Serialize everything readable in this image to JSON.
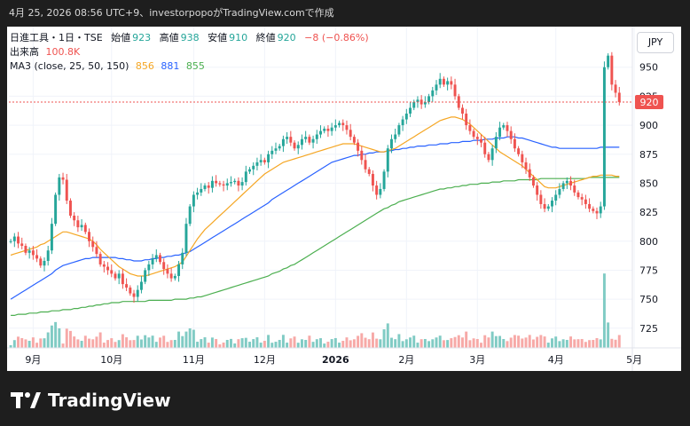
{
  "topbar": {
    "text": "4月 25, 2026 08:56 UTC+9、investorpopoがTradingView.comで作成"
  },
  "legend": {
    "symbol": "日進工具・1日・TSE",
    "o_label": "始値",
    "o": "923",
    "h_label": "高値",
    "h": "938",
    "l_label": "安値",
    "l": "910",
    "c_label": "終値",
    "c": "920",
    "change": "−8 (−0.86%)",
    "volume_label": "出来高",
    "volume": "100.8K",
    "ma_label": "MA3 (close, 25, 50, 150)",
    "ma1": "856",
    "ma2": "881",
    "ma3": "855"
  },
  "currency": "JPY",
  "price_tag": "920",
  "footer": {
    "brand": "TradingView"
  },
  "colors": {
    "up": "#26a69a",
    "down": "#ef5350",
    "ma25": "#f5a623",
    "ma50": "#2962ff",
    "ma150": "#4caf50",
    "vol_up": "#80cbc4",
    "vol_down": "#f7a9a7"
  },
  "chart_data": {
    "type": "candlestick",
    "title": "日進工具・1日・TSE",
    "ylim": [
      708,
      985
    ],
    "yticks": [
      725,
      750,
      775,
      800,
      825,
      850,
      875,
      900,
      925,
      950
    ],
    "ytick_labels": [
      "725",
      "750",
      "775",
      "800",
      "825",
      "850",
      "875",
      "900",
      "925",
      "950"
    ],
    "xticks": [
      {
        "label": "9月",
        "i": 6
      },
      {
        "label": "10月",
        "i": 27
      },
      {
        "label": "11月",
        "i": 49
      },
      {
        "label": "12月",
        "i": 68
      },
      {
        "label": "2026",
        "i": 87
      },
      {
        "label": "2月",
        "i": 106
      },
      {
        "label": "3月",
        "i": 125
      },
      {
        "label": "4月",
        "i": 146
      },
      {
        "label": "5月",
        "i": 167
      }
    ],
    "last_price": 920,
    "bars": 164,
    "closes": [
      800,
      804,
      798,
      796,
      790,
      792,
      788,
      785,
      779,
      783,
      792,
      815,
      840,
      855,
      853,
      835,
      822,
      818,
      812,
      814,
      808,
      800,
      795,
      789,
      780,
      778,
      775,
      772,
      768,
      772,
      763,
      760,
      755,
      752,
      758,
      765,
      775,
      780,
      785,
      788,
      782,
      776,
      772,
      768,
      770,
      780,
      790,
      815,
      830,
      840,
      842,
      845,
      848,
      846,
      852,
      850,
      849,
      848,
      850,
      851,
      852,
      848,
      851,
      860,
      862,
      865,
      868,
      870,
      868,
      875,
      878,
      880,
      882,
      888,
      890,
      885,
      880,
      883,
      888,
      890,
      885,
      888,
      892,
      895,
      897,
      895,
      898,
      900,
      902,
      900,
      896,
      890,
      885,
      878,
      870,
      862,
      858,
      848,
      840,
      845,
      860,
      880,
      888,
      892,
      900,
      905,
      910,
      915,
      920,
      922,
      918,
      920,
      925,
      930,
      935,
      940,
      935,
      938,
      935,
      925,
      915,
      910,
      900,
      895,
      890,
      888,
      885,
      875,
      870,
      880,
      890,
      898,
      900,
      895,
      888,
      880,
      875,
      868,
      862,
      855,
      848,
      840,
      832,
      828,
      830,
      835,
      840,
      845,
      850,
      852,
      848,
      842,
      838,
      836,
      832,
      828,
      826,
      824,
      830,
      950,
      960,
      935,
      928,
      920
    ],
    "ma25": [
      788,
      789,
      790,
      791,
      792,
      793,
      794,
      795,
      797,
      798,
      800,
      802,
      804,
      806,
      808,
      808,
      807,
      806,
      805,
      804,
      803,
      802,
      800,
      797,
      793,
      790,
      787,
      784,
      781,
      778,
      776,
      774,
      772,
      771,
      770,
      770,
      770,
      771,
      772,
      773,
      774,
      775,
      776,
      777,
      778,
      780,
      782,
      787,
      792,
      797,
      802,
      806,
      810,
      813,
      816,
      819,
      822,
      825,
      828,
      831,
      834,
      837,
      840,
      843,
      846,
      849,
      852,
      855,
      858,
      860,
      862,
      864,
      866,
      868,
      869,
      870,
      871,
      872,
      873,
      874,
      875,
      876,
      877,
      878,
      879,
      880,
      881,
      882,
      883,
      884,
      884,
      884,
      884,
      883,
      882,
      881,
      880,
      879,
      878,
      877,
      877,
      878,
      879,
      880,
      882,
      884,
      886,
      888,
      890,
      892,
      894,
      896,
      898,
      900,
      902,
      904,
      905,
      906,
      907,
      907,
      906,
      905,
      903,
      901,
      898,
      895,
      892,
      889,
      886,
      883,
      880,
      877,
      875,
      873,
      871,
      869,
      867,
      865,
      862,
      859,
      856,
      853,
      850,
      847,
      846,
      846,
      846,
      847,
      848,
      849,
      850,
      851,
      852,
      853,
      854,
      855,
      856,
      856,
      857,
      857,
      857,
      857,
      856,
      856
    ],
    "ma50": [
      750,
      752,
      754,
      756,
      758,
      760,
      762,
      764,
      766,
      768,
      770,
      772,
      775,
      777,
      779,
      780,
      781,
      782,
      783,
      784,
      785,
      785,
      786,
      786,
      786,
      786,
      786,
      786,
      786,
      785,
      785,
      784,
      784,
      783,
      783,
      783,
      784,
      784,
      785,
      785,
      786,
      786,
      787,
      787,
      788,
      788,
      789,
      790,
      791,
      793,
      795,
      797,
      799,
      801,
      803,
      805,
      807,
      809,
      811,
      813,
      815,
      817,
      819,
      821,
      823,
      825,
      827,
      829,
      831,
      833,
      836,
      838,
      840,
      842,
      844,
      846,
      848,
      850,
      852,
      854,
      856,
      858,
      860,
      862,
      864,
      866,
      868,
      869,
      870,
      871,
      872,
      873,
      874,
      874,
      875,
      875,
      876,
      876,
      877,
      877,
      877,
      878,
      878,
      879,
      879,
      880,
      880,
      881,
      881,
      882,
      882,
      882,
      883,
      883,
      883,
      884,
      884,
      884,
      885,
      885,
      885,
      886,
      886,
      886,
      887,
      887,
      887,
      888,
      888,
      888,
      889,
      889,
      889,
      890,
      890,
      890,
      889,
      889,
      888,
      887,
      886,
      885,
      884,
      883,
      882,
      881,
      881,
      880,
      880,
      880,
      880,
      880,
      880,
      880,
      880,
      880,
      880,
      880,
      881,
      881,
      881,
      881,
      881,
      881
    ],
    "ma150": [
      736,
      736,
      737,
      737,
      737,
      738,
      738,
      738,
      739,
      739,
      739,
      740,
      740,
      740,
      741,
      741,
      741,
      742,
      742,
      743,
      743,
      744,
      744,
      745,
      745,
      746,
      746,
      747,
      747,
      747,
      748,
      748,
      748,
      748,
      748,
      748,
      748,
      749,
      749,
      749,
      749,
      749,
      749,
      749,
      750,
      750,
      750,
      750,
      751,
      751,
      752,
      752,
      753,
      754,
      755,
      756,
      757,
      758,
      759,
      760,
      761,
      762,
      763,
      764,
      765,
      766,
      767,
      768,
      769,
      770,
      772,
      773,
      774,
      776,
      777,
      779,
      780,
      782,
      784,
      786,
      788,
      790,
      792,
      794,
      796,
      798,
      800,
      802,
      804,
      806,
      808,
      810,
      812,
      814,
      816,
      818,
      820,
      822,
      824,
      826,
      828,
      829,
      831,
      832,
      834,
      835,
      836,
      837,
      838,
      839,
      840,
      841,
      842,
      843,
      844,
      845,
      845,
      846,
      846,
      847,
      847,
      848,
      848,
      849,
      849,
      849,
      850,
      850,
      850,
      851,
      851,
      851,
      852,
      852,
      852,
      852,
      853,
      853,
      853,
      853,
      853,
      853,
      854,
      854,
      854,
      854,
      854,
      854,
      854,
      854,
      854,
      854,
      854,
      854,
      854,
      855,
      855,
      855,
      855,
      855,
      855,
      855,
      855,
      855
    ],
    "volume_max": 100.8
  }
}
